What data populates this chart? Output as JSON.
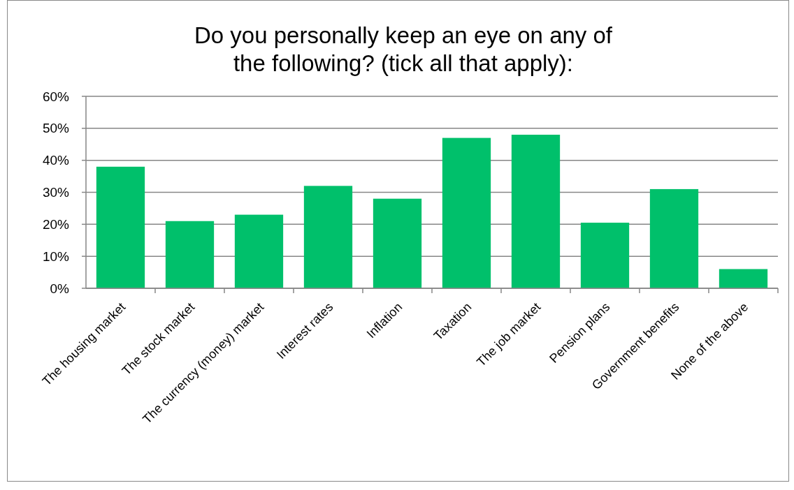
{
  "chart_data": {
    "type": "bar",
    "title": "Do you personally keep an eye on any of the following? (tick all that apply):",
    "categories": [
      "The housing market",
      "The stock market",
      "The currency (money) market",
      "Interest rates",
      "Inflation",
      "Taxation",
      "The job market",
      "Pension plans",
      "Government benefits",
      "None of the above"
    ],
    "values": [
      38,
      21,
      23,
      32,
      28,
      47,
      48,
      20.5,
      31,
      6
    ],
    "color": "#00c06b",
    "ylim": [
      0,
      60
    ],
    "yticks": [
      {
        "value": 0,
        "label": "0%"
      },
      {
        "value": 10,
        "label": "10%"
      },
      {
        "value": 20,
        "label": "20%"
      },
      {
        "value": 30,
        "label": "30%"
      },
      {
        "value": 40,
        "label": "40%"
      },
      {
        "value": 50,
        "label": "50%"
      },
      {
        "value": 60,
        "label": "60%"
      }
    ],
    "grid": "y"
  }
}
